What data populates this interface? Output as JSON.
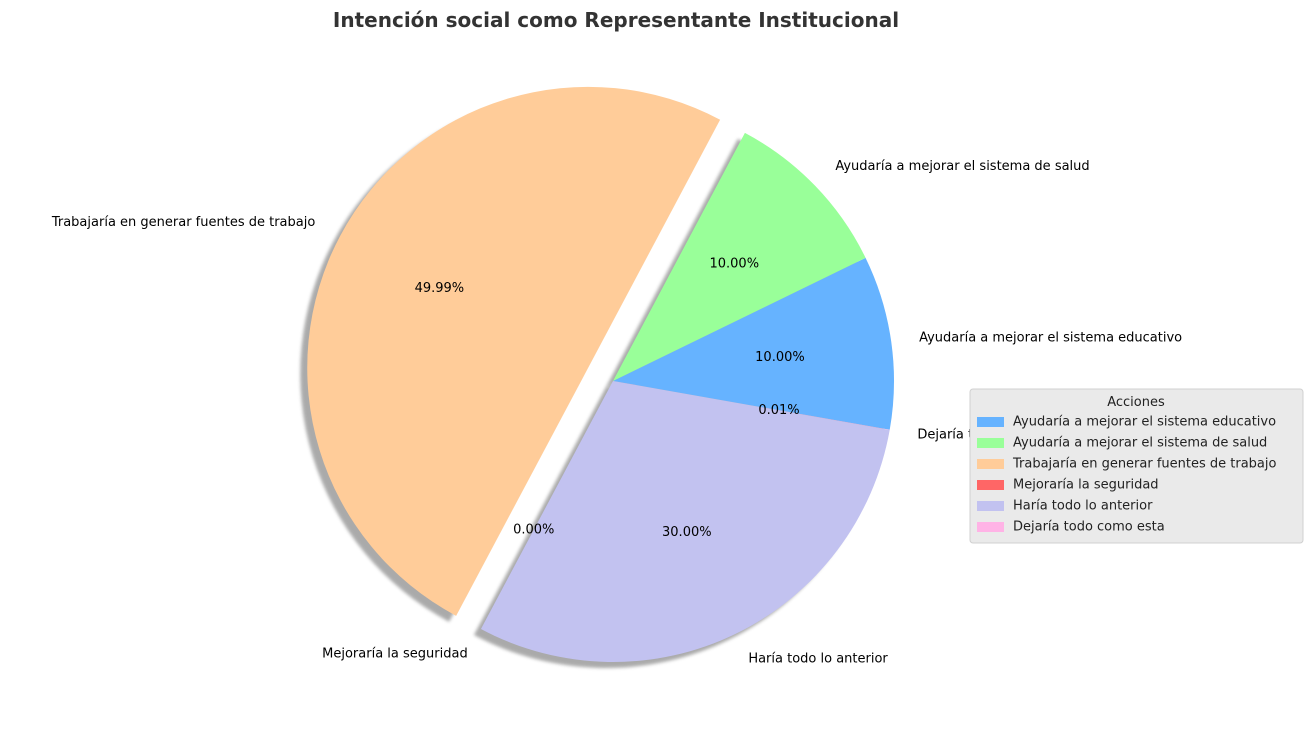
{
  "chart_data": {
    "type": "pie",
    "title": "Intención social como Representante Institucional",
    "start_angle_deg": -10,
    "direction": "counterclockwise",
    "shadow": true,
    "legend": {
      "title": "Acciones",
      "placement": "right"
    },
    "slices": [
      {
        "label": "Ayudaría a mejorar el sistema educativo",
        "value": 10.0,
        "pct_label": "10.00%",
        "color": "#66b3ff",
        "explode": 0
      },
      {
        "label": "Ayudaría a mejorar el sistema de salud",
        "value": 10.0,
        "pct_label": "10.00%",
        "color": "#99ff99",
        "explode": 0
      },
      {
        "label": "Trabajaría en generar fuentes de trabajo",
        "value": 49.99,
        "pct_label": "49.99%",
        "color": "#ffcc99",
        "explode": 0.1
      },
      {
        "label": "Mejoraría la seguridad",
        "value": 0.0,
        "pct_label": "0.00%",
        "color": "#ff6666",
        "explode": 0
      },
      {
        "label": "Haría todo lo anterior",
        "value": 30.0,
        "pct_label": "30.00%",
        "color": "#c2c2f0",
        "explode": 0
      },
      {
        "label": "Dejaría todo como esta",
        "value": 0.01,
        "pct_label": "0.01%",
        "color": "#ffb3e6",
        "explode": 0
      }
    ]
  }
}
